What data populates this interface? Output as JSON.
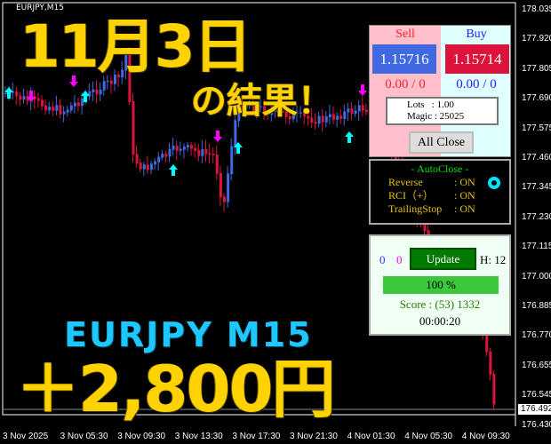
{
  "chart": {
    "symbol": "EURJPY,M15",
    "current_price": "176.492",
    "price_labels": [
      "178.035",
      "177.920",
      "177.805",
      "177.690",
      "177.575",
      "177.460",
      "177.345",
      "177.230",
      "177.115",
      "177.000",
      "176.885",
      "176.770",
      "176.655",
      "176.545",
      "176.430"
    ],
    "time_labels": [
      "3 Nov 2025",
      "3 Nov 05:30",
      "3 Nov 09:30",
      "3 Nov 13:30",
      "3 Nov 17:30",
      "3 Nov 21:30",
      "4 Nov 01:30",
      "4 Nov 05:30",
      "4 Nov 09:30"
    ],
    "colors": {
      "bull": "#4169e1",
      "bear": "#dc143c",
      "buy_arrow": "#00ffff",
      "sell_arrow": "#ff00ff"
    }
  },
  "overlay": {
    "date": "11月3日",
    "result": "の結果！",
    "pair": "EURJPY M15",
    "profit": "＋2,800円"
  },
  "panel": {
    "sell_label": "Sell",
    "buy_label": "Buy",
    "sell_price": "1.15716",
    "buy_price": "1.15714",
    "sell_pl": "0.00 / 0",
    "buy_pl": "0.00 / 0",
    "lots": "Lots   : 1.00",
    "magic": "Magic : 25025",
    "all_close": "All Close"
  },
  "autoclose": {
    "title": "- AutoClose -",
    "rows": [
      {
        "k": "Reverse",
        "v": ": ON"
      },
      {
        "k": "RCI（+）",
        "v": ": ON"
      },
      {
        "k": "TrailingStop",
        "v": ": ON"
      }
    ]
  },
  "stats": {
    "count_blue": "0",
    "count_magenta": "0",
    "update": "Update",
    "h": "H: 12",
    "progress_label": "100 %",
    "progress": 100,
    "score": "Score : (53) 1332",
    "timer": "00:00:20"
  }
}
